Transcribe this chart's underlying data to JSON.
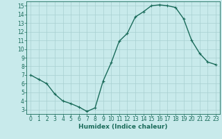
{
  "x": [
    0,
    1,
    2,
    3,
    4,
    5,
    6,
    7,
    8,
    9,
    10,
    11,
    12,
    13,
    14,
    15,
    16,
    17,
    18,
    19,
    20,
    21,
    22,
    23
  ],
  "y": [
    7.0,
    6.5,
    6.0,
    4.8,
    4.0,
    3.7,
    3.3,
    2.8,
    3.2,
    6.3,
    8.4,
    10.9,
    11.8,
    13.7,
    14.3,
    15.0,
    15.1,
    15.0,
    14.8,
    13.5,
    11.0,
    9.5,
    8.5,
    8.2
  ],
  "xlabel": "Humidex (Indice chaleur)",
  "ylim": [
    2.5,
    15.5
  ],
  "xlim": [
    -0.5,
    23.5
  ],
  "line_color": "#1a6b5a",
  "marker_color": "#1a6b5a",
  "bg_color": "#c8eaeb",
  "grid_color": "#a8cfd0",
  "yticks": [
    3,
    4,
    5,
    6,
    7,
    8,
    9,
    10,
    11,
    12,
    13,
    14,
    15
  ],
  "xticks": [
    0,
    1,
    2,
    3,
    4,
    5,
    6,
    7,
    8,
    9,
    10,
    11,
    12,
    13,
    14,
    15,
    16,
    17,
    18,
    19,
    20,
    21,
    22,
    23
  ],
  "font_color": "#1a6b5a",
  "tick_font_size": 5.5,
  "xlabel_fontsize": 6.5,
  "linewidth": 1.0,
  "markersize": 2.5,
  "marker_linewidth": 0.8
}
